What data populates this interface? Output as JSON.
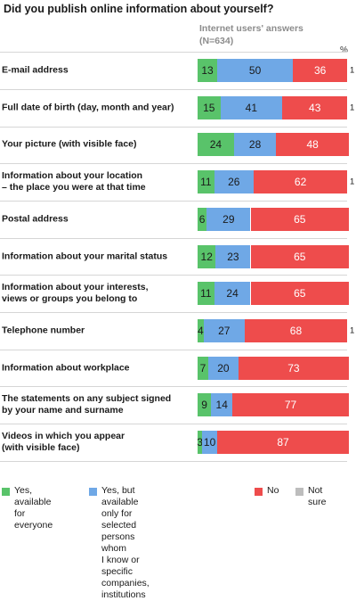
{
  "title": "Did you publish online information about yourself?",
  "subtitle": "Internet users' answers\n(N=634)",
  "unit_label": "%",
  "colors": {
    "everyone": "#59c36a",
    "selected": "#6fa8e6",
    "no": "#ee4c4c",
    "not_sure": "#bdbdbd"
  },
  "chart_data": {
    "type": "bar",
    "orientation": "horizontal",
    "stacked": true,
    "xlim": [
      0,
      100
    ],
    "categories": [
      "E-mail address",
      "Full date of birth (day, month and year)",
      "Your picture (with visible face)",
      "Information about your location\n– the place you were at that time",
      "Postal address",
      "Information about your marital status",
      "Information about your interests,\nviews or groups you belong to",
      "Telephone number",
      "Information about workplace",
      "The statements on any subject signed\nby your name and surname",
      "Videos in which you appear\n(with visible face)"
    ],
    "series": [
      {
        "name": "Yes, available\nfor everyone",
        "values": [
          13,
          15,
          24,
          11,
          6,
          12,
          11,
          4,
          7,
          9,
          3
        ]
      },
      {
        "name": "Yes, but available only for\nselected persons whom\nI know or specific companies,\ninstitutions",
        "values": [
          50,
          41,
          28,
          26,
          29,
          23,
          24,
          27,
          20,
          14,
          10
        ]
      },
      {
        "name": "No",
        "values": [
          36,
          43,
          48,
          62,
          65,
          65,
          65,
          68,
          73,
          77,
          87
        ]
      },
      {
        "name": "Not sure",
        "values": [
          1,
          1,
          0,
          1,
          0,
          0,
          0,
          1,
          0,
          0,
          0
        ]
      }
    ],
    "legend_position": "bottom"
  }
}
